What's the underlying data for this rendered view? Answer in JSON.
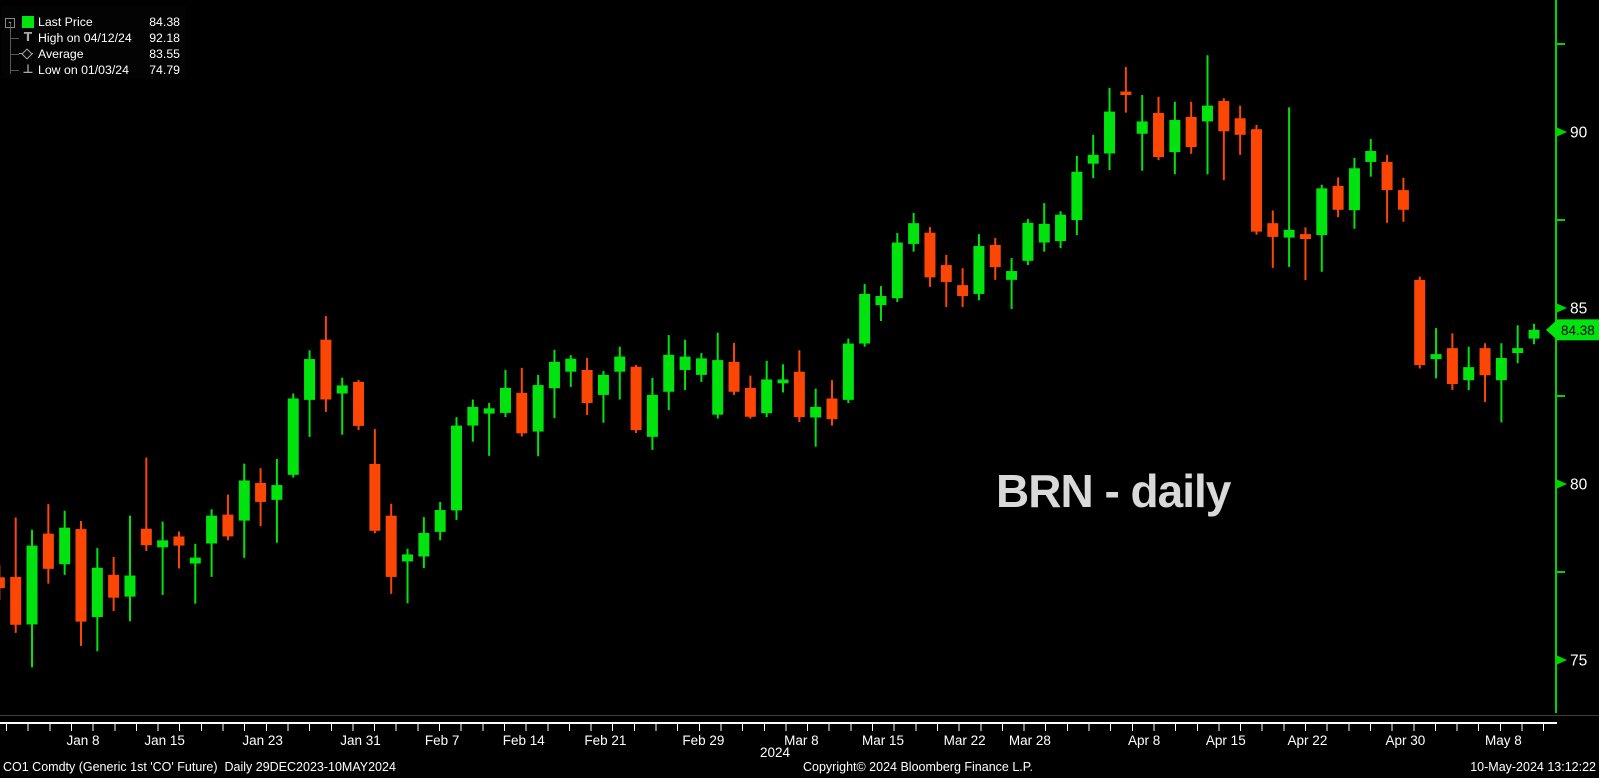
{
  "title": "BRN - daily",
  "legend": {
    "collapse_glyph": "-",
    "items": [
      {
        "icon": "last-price-swatch",
        "label": "Last Price",
        "value": "84.38"
      },
      {
        "icon": "high-marker",
        "label": "High on 04/12/24",
        "value": "92.18"
      },
      {
        "icon": "average-marker",
        "label": "Average",
        "value": "83.55"
      },
      {
        "icon": "low-marker",
        "label": "Low on 01/03/24",
        "value": "74.79"
      }
    ]
  },
  "colors": {
    "up": "#00e30e",
    "down": "#fb4606",
    "axis_green": "#00d500",
    "label_white": "#ffffff",
    "tag_bg": "#00e30e",
    "tag_text": "#000000",
    "title_gray": "#d9d9d9"
  },
  "y_axis": {
    "major_ticks": [
      90,
      85,
      80,
      75
    ],
    "minor_ticks": [
      92.5,
      87.5,
      82.5,
      77.5
    ],
    "last_price": 84.38,
    "last_price_label": "84.38"
  },
  "x_axis": {
    "year_label": "2024",
    "labels": [
      {
        "text": "Jan 8",
        "index": 5
      },
      {
        "text": "Jan 15",
        "index": 10
      },
      {
        "text": "Jan 23",
        "index": 16
      },
      {
        "text": "Jan 31",
        "index": 22
      },
      {
        "text": "Feb 7",
        "index": 27
      },
      {
        "text": "Feb 14",
        "index": 32
      },
      {
        "text": "Feb 21",
        "index": 37
      },
      {
        "text": "Feb 29",
        "index": 43
      },
      {
        "text": "Mar 8",
        "index": 49
      },
      {
        "text": "Mar 15",
        "index": 54
      },
      {
        "text": "Mar 22",
        "index": 59
      },
      {
        "text": "Mar 28",
        "index": 63
      },
      {
        "text": "Apr 8",
        "index": 70
      },
      {
        "text": "Apr 15",
        "index": 75
      },
      {
        "text": "Apr 22",
        "index": 80
      },
      {
        "text": "Apr 30",
        "index": 86
      },
      {
        "text": "May 8",
        "index": 92
      }
    ]
  },
  "footer": {
    "left": "CO1 Comdty (Generic 1st 'CO' Future)  Daily 29DEC2023-10MAY2024",
    "center": "Copyright© 2024 Bloomberg Finance L.P.",
    "right": "10-May-2024 13:12:22"
  },
  "chart_data": {
    "type": "candlestick",
    "symbol": "CO1 Comdty (Generic 1st 'CO' Future)",
    "period": "daily",
    "date_range": "29DEC2023-10MAY2024",
    "ylim": [
      73.5,
      93.5
    ],
    "last_price": 84.38,
    "high": {
      "date": "04/12/24",
      "value": 92.18
    },
    "average": 83.55,
    "low": {
      "date": "01/03/24",
      "value": 74.79
    },
    "series": [
      {
        "d": "12/29",
        "o": 77.35,
        "h": 77.7,
        "l": 76.7,
        "c": 77.04
      },
      {
        "d": "01/02",
        "o": 77.36,
        "h": 79.05,
        "l": 75.77,
        "c": 76.0
      },
      {
        "d": "01/03",
        "o": 76.01,
        "h": 78.7,
        "l": 74.79,
        "c": 78.25
      },
      {
        "d": "01/04",
        "o": 78.59,
        "h": 79.43,
        "l": 77.17,
        "c": 77.59
      },
      {
        "d": "01/05",
        "o": 77.72,
        "h": 79.24,
        "l": 77.42,
        "c": 78.76
      },
      {
        "d": "01/08",
        "o": 78.72,
        "h": 78.95,
        "l": 75.4,
        "c": 76.09
      },
      {
        "d": "01/09",
        "o": 76.22,
        "h": 78.18,
        "l": 75.25,
        "c": 77.62
      },
      {
        "d": "01/10",
        "o": 77.42,
        "h": 77.93,
        "l": 76.39,
        "c": 76.77
      },
      {
        "d": "01/11",
        "o": 76.8,
        "h": 79.1,
        "l": 76.1,
        "c": 77.4
      },
      {
        "d": "01/12",
        "o": 78.73,
        "h": 80.75,
        "l": 78.1,
        "c": 78.26
      },
      {
        "d": "01/15",
        "o": 78.2,
        "h": 78.93,
        "l": 76.85,
        "c": 78.4
      },
      {
        "d": "01/16",
        "o": 78.51,
        "h": 78.65,
        "l": 77.6,
        "c": 78.25
      },
      {
        "d": "01/17",
        "o": 77.74,
        "h": 78.3,
        "l": 76.6,
        "c": 77.91
      },
      {
        "d": "01/18",
        "o": 78.31,
        "h": 79.28,
        "l": 77.36,
        "c": 79.1
      },
      {
        "d": "01/19",
        "o": 79.13,
        "h": 79.7,
        "l": 78.4,
        "c": 78.51
      },
      {
        "d": "01/22",
        "o": 78.96,
        "h": 80.58,
        "l": 77.9,
        "c": 80.1
      },
      {
        "d": "01/23",
        "o": 80.03,
        "h": 80.45,
        "l": 78.8,
        "c": 79.49
      },
      {
        "d": "01/24",
        "o": 79.55,
        "h": 80.71,
        "l": 78.33,
        "c": 79.97
      },
      {
        "d": "01/25",
        "o": 80.26,
        "h": 82.57,
        "l": 80.18,
        "c": 82.43
      },
      {
        "d": "01/26",
        "o": 82.39,
        "h": 83.8,
        "l": 81.34,
        "c": 83.55
      },
      {
        "d": "01/29",
        "o": 84.1,
        "h": 84.77,
        "l": 82.05,
        "c": 82.4
      },
      {
        "d": "01/30",
        "o": 82.57,
        "h": 83.02,
        "l": 81.4,
        "c": 82.8
      },
      {
        "d": "01/31",
        "o": 82.9,
        "h": 82.96,
        "l": 81.53,
        "c": 81.65
      },
      {
        "d": "02/01",
        "o": 80.57,
        "h": 81.56,
        "l": 78.6,
        "c": 78.67
      },
      {
        "d": "02/02",
        "o": 79.1,
        "h": 79.44,
        "l": 76.88,
        "c": 77.36
      },
      {
        "d": "02/05",
        "o": 77.8,
        "h": 78.16,
        "l": 76.61,
        "c": 78.0
      },
      {
        "d": "02/06",
        "o": 77.94,
        "h": 79.06,
        "l": 77.61,
        "c": 78.61
      },
      {
        "d": "02/07",
        "o": 78.64,
        "h": 79.49,
        "l": 78.4,
        "c": 79.26
      },
      {
        "d": "02/08",
        "o": 79.25,
        "h": 81.9,
        "l": 78.98,
        "c": 81.66
      },
      {
        "d": "02/09",
        "o": 81.66,
        "h": 82.4,
        "l": 81.2,
        "c": 82.19
      },
      {
        "d": "02/12",
        "o": 82.0,
        "h": 82.3,
        "l": 80.8,
        "c": 82.15
      },
      {
        "d": "02/13",
        "o": 82.02,
        "h": 83.24,
        "l": 81.9,
        "c": 82.73
      },
      {
        "d": "02/14",
        "o": 82.59,
        "h": 83.3,
        "l": 81.35,
        "c": 81.44
      },
      {
        "d": "02/15",
        "o": 81.49,
        "h": 83.1,
        "l": 80.79,
        "c": 82.81
      },
      {
        "d": "02/16",
        "o": 82.72,
        "h": 83.81,
        "l": 81.87,
        "c": 83.47
      },
      {
        "d": "02/19",
        "o": 83.19,
        "h": 83.66,
        "l": 82.76,
        "c": 83.56
      },
      {
        "d": "02/20",
        "o": 83.24,
        "h": 83.58,
        "l": 81.96,
        "c": 82.3
      },
      {
        "d": "02/21",
        "o": 82.53,
        "h": 83.21,
        "l": 81.74,
        "c": 83.1
      },
      {
        "d": "02/22",
        "o": 83.19,
        "h": 83.9,
        "l": 82.4,
        "c": 83.62
      },
      {
        "d": "02/23",
        "o": 83.33,
        "h": 83.38,
        "l": 81.45,
        "c": 81.53
      },
      {
        "d": "02/26",
        "o": 81.34,
        "h": 83.02,
        "l": 80.97,
        "c": 82.53
      },
      {
        "d": "02/27",
        "o": 82.62,
        "h": 84.23,
        "l": 82.1,
        "c": 83.67
      },
      {
        "d": "02/28",
        "o": 83.24,
        "h": 84.1,
        "l": 82.67,
        "c": 83.62
      },
      {
        "d": "02/29",
        "o": 83.1,
        "h": 83.72,
        "l": 82.9,
        "c": 83.57
      },
      {
        "d": "03/01",
        "o": 81.97,
        "h": 84.3,
        "l": 81.86,
        "c": 83.52
      },
      {
        "d": "03/04",
        "o": 83.47,
        "h": 84.01,
        "l": 82.53,
        "c": 82.62
      },
      {
        "d": "03/05",
        "o": 82.73,
        "h": 83.08,
        "l": 81.86,
        "c": 81.91
      },
      {
        "d": "03/06",
        "o": 82.01,
        "h": 83.5,
        "l": 81.9,
        "c": 82.97
      },
      {
        "d": "03/07",
        "o": 82.86,
        "h": 83.4,
        "l": 82.6,
        "c": 82.97
      },
      {
        "d": "03/08",
        "o": 83.19,
        "h": 83.8,
        "l": 81.76,
        "c": 81.9
      },
      {
        "d": "03/11",
        "o": 81.89,
        "h": 82.71,
        "l": 81.06,
        "c": 82.19
      },
      {
        "d": "03/12",
        "o": 82.43,
        "h": 82.95,
        "l": 81.66,
        "c": 81.84
      },
      {
        "d": "03/13",
        "o": 82.39,
        "h": 84.13,
        "l": 82.3,
        "c": 83.99
      },
      {
        "d": "03/14",
        "o": 83.99,
        "h": 85.68,
        "l": 83.9,
        "c": 85.4
      },
      {
        "d": "03/15",
        "o": 85.08,
        "h": 85.62,
        "l": 84.63,
        "c": 85.34
      },
      {
        "d": "03/18",
        "o": 85.28,
        "h": 87.13,
        "l": 85.17,
        "c": 86.86
      },
      {
        "d": "03/19",
        "o": 86.82,
        "h": 87.7,
        "l": 86.6,
        "c": 87.41
      },
      {
        "d": "03/20",
        "o": 87.14,
        "h": 87.3,
        "l": 85.6,
        "c": 85.87
      },
      {
        "d": "03/21",
        "o": 86.22,
        "h": 86.51,
        "l": 85.03,
        "c": 85.74
      },
      {
        "d": "03/22",
        "o": 85.65,
        "h": 86.13,
        "l": 85.03,
        "c": 85.34
      },
      {
        "d": "03/25",
        "o": 85.4,
        "h": 87.1,
        "l": 85.22,
        "c": 86.76
      },
      {
        "d": "03/26",
        "o": 86.79,
        "h": 86.99,
        "l": 85.8,
        "c": 86.16
      },
      {
        "d": "03/27",
        "o": 85.8,
        "h": 86.42,
        "l": 84.97,
        "c": 86.05
      },
      {
        "d": "03/28",
        "o": 86.34,
        "h": 87.53,
        "l": 86.22,
        "c": 87.42
      },
      {
        "d": "03/29",
        "o": 86.86,
        "h": 87.98,
        "l": 86.6,
        "c": 87.39
      },
      {
        "d": "04/01",
        "o": 86.9,
        "h": 87.75,
        "l": 86.7,
        "c": 87.65
      },
      {
        "d": "04/02",
        "o": 87.5,
        "h": 89.32,
        "l": 87.07,
        "c": 88.87
      },
      {
        "d": "04/03",
        "o": 89.1,
        "h": 89.92,
        "l": 88.69,
        "c": 89.35
      },
      {
        "d": "04/04",
        "o": 89.39,
        "h": 91.25,
        "l": 88.92,
        "c": 90.58
      },
      {
        "d": "04/05",
        "o": 91.15,
        "h": 91.85,
        "l": 90.55,
        "c": 91.05
      },
      {
        "d": "04/08",
        "o": 89.95,
        "h": 91.05,
        "l": 88.9,
        "c": 90.3
      },
      {
        "d": "04/09",
        "o": 90.54,
        "h": 91.0,
        "l": 89.2,
        "c": 89.29
      },
      {
        "d": "04/10",
        "o": 89.43,
        "h": 90.86,
        "l": 88.8,
        "c": 90.34
      },
      {
        "d": "04/11",
        "o": 90.43,
        "h": 90.86,
        "l": 89.38,
        "c": 89.57
      },
      {
        "d": "04/12",
        "o": 90.3,
        "h": 92.18,
        "l": 88.8,
        "c": 90.75
      },
      {
        "d": "04/15",
        "o": 90.88,
        "h": 90.96,
        "l": 88.63,
        "c": 90.02
      },
      {
        "d": "04/16",
        "o": 90.39,
        "h": 90.75,
        "l": 89.35,
        "c": 89.92
      },
      {
        "d": "04/17",
        "o": 90.08,
        "h": 90.2,
        "l": 87.08,
        "c": 87.17
      },
      {
        "d": "04/18",
        "o": 87.41,
        "h": 87.77,
        "l": 86.14,
        "c": 87.02
      },
      {
        "d": "04/19",
        "o": 87.0,
        "h": 90.7,
        "l": 86.17,
        "c": 87.22
      },
      {
        "d": "04/22",
        "o": 87.1,
        "h": 87.29,
        "l": 85.79,
        "c": 86.96
      },
      {
        "d": "04/23",
        "o": 87.07,
        "h": 88.5,
        "l": 86.03,
        "c": 88.4
      },
      {
        "d": "04/24",
        "o": 88.47,
        "h": 88.71,
        "l": 87.58,
        "c": 87.79
      },
      {
        "d": "04/25",
        "o": 87.78,
        "h": 89.26,
        "l": 87.25,
        "c": 88.97
      },
      {
        "d": "04/26",
        "o": 89.15,
        "h": 89.8,
        "l": 88.73,
        "c": 89.46
      },
      {
        "d": "04/29",
        "o": 89.15,
        "h": 89.35,
        "l": 87.42,
        "c": 88.35
      },
      {
        "d": "04/30",
        "o": 88.35,
        "h": 88.7,
        "l": 87.45,
        "c": 87.79
      },
      {
        "d": "05/01",
        "o": 85.8,
        "h": 85.89,
        "l": 83.28,
        "c": 83.38
      },
      {
        "d": "05/02",
        "o": 83.55,
        "h": 84.43,
        "l": 83.0,
        "c": 83.69
      },
      {
        "d": "05/03",
        "o": 83.86,
        "h": 84.28,
        "l": 82.67,
        "c": 82.84
      },
      {
        "d": "05/06",
        "o": 82.95,
        "h": 83.9,
        "l": 82.67,
        "c": 83.32
      },
      {
        "d": "05/07",
        "o": 83.86,
        "h": 84.0,
        "l": 82.33,
        "c": 83.09
      },
      {
        "d": "05/08",
        "o": 82.95,
        "h": 84.0,
        "l": 81.75,
        "c": 83.58
      },
      {
        "d": "05/09",
        "o": 83.72,
        "h": 84.51,
        "l": 83.43,
        "c": 83.86
      },
      {
        "d": "05/10",
        "o": 84.13,
        "h": 84.55,
        "l": 83.97,
        "c": 84.38
      }
    ]
  }
}
